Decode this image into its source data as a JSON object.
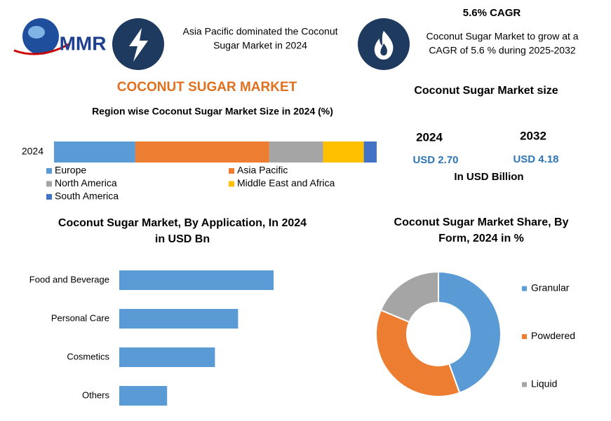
{
  "header": {
    "logo": "MMR",
    "left_note": [
      "Asia Pacific dominated the Coconut",
      "Sugar Market in 2024"
    ],
    "cagr_title": "5.6% CAGR",
    "right_note": [
      "Coconut Sugar Market to grow at a",
      "CAGR of 5.6 % during 2025-2032"
    ],
    "heading": "COCONUT SUGAR MARKET"
  },
  "market_size": {
    "title": "Coconut Sugar Market size",
    "items": [
      {
        "year": "2024",
        "value": "USD 2.70"
      },
      {
        "year": "2032",
        "value": "USD 4.18"
      }
    ],
    "unit": "In USD Billion"
  },
  "chart_data": [
    {
      "type": "stacked-bar",
      "title": "Region wise Coconut Sugar Market Size in 2024 (%)",
      "categories": [
        "2024"
      ],
      "series": [
        {
          "name": "Europe",
          "color": "#5b9bd5",
          "values": [
            25.2
          ]
        },
        {
          "name": "Asia Pacific",
          "color": "#ed7d31",
          "values": [
            41.5
          ]
        },
        {
          "name": "North America",
          "color": "#a5a5a5",
          "values": [
            16.7
          ]
        },
        {
          "name": "Middle East and Africa",
          "color": "#ffc000",
          "values": [
            12.6
          ]
        },
        {
          "name": "South America",
          "color": "#4472c4",
          "values": [
            4.0
          ]
        }
      ]
    },
    {
      "type": "hbar",
      "title": [
        "Coconut Sugar Market, By  Application, In 2024",
        "in USD Bn"
      ],
      "categories": [
        "Food and Beverage",
        "Personal Care",
        "Cosmetics",
        "Others"
      ],
      "values": [
        1.0,
        0.77,
        0.62,
        0.31
      ],
      "color": "#5b9bd5"
    },
    {
      "type": "donut",
      "title": [
        "Coconut Sugar Market Share, By",
        "Form, 2024 in %"
      ],
      "categories": [
        "Granular",
        "Powdered",
        "Liquid"
      ],
      "values": [
        44.5,
        36.8,
        18.7
      ],
      "colors": [
        "#5b9bd5",
        "#ed7d31",
        "#a5a5a5"
      ]
    }
  ]
}
